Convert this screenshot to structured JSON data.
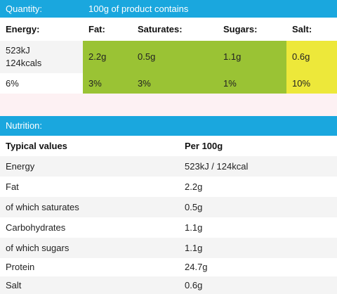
{
  "quantity_bar": {
    "label": "Quantity:",
    "heading": "100g of product contains"
  },
  "traffic_header": {
    "energy": "Energy:",
    "fat": "Fat:",
    "saturates": "Saturates:",
    "sugars": "Sugars:",
    "salt": "Salt:"
  },
  "traffic_values": {
    "energy_kj": "523kJ",
    "energy_kcal": "124kcals",
    "fat": "2.2g",
    "saturates": "0.5g",
    "sugars": "1.1g",
    "salt": "0.6g"
  },
  "traffic_percent": {
    "energy": "6%",
    "fat": "3%",
    "saturates": "3%",
    "sugars": "1%",
    "salt": "10%"
  },
  "colors": {
    "header_blue": "#1aa7de",
    "low_green": "#9ac334",
    "medium_yellow": "#ede83a"
  },
  "nutrition_bar": {
    "label": "Nutrition:"
  },
  "nutrition_table": {
    "headers": {
      "name": "Typical values",
      "value": "Per 100g"
    },
    "rows": [
      {
        "name": "Energy",
        "value": "523kJ / 124kcal"
      },
      {
        "name": "Fat",
        "value": "2.2g"
      },
      {
        "name": "of which saturates",
        "value": "0.5g"
      },
      {
        "name": "Carbohydrates",
        "value": "1.1g"
      },
      {
        "name": "of which sugars",
        "value": "1.1g"
      },
      {
        "name": "Protein",
        "value": "24.7g"
      },
      {
        "name": "Salt",
        "value": "0.6g"
      }
    ]
  }
}
